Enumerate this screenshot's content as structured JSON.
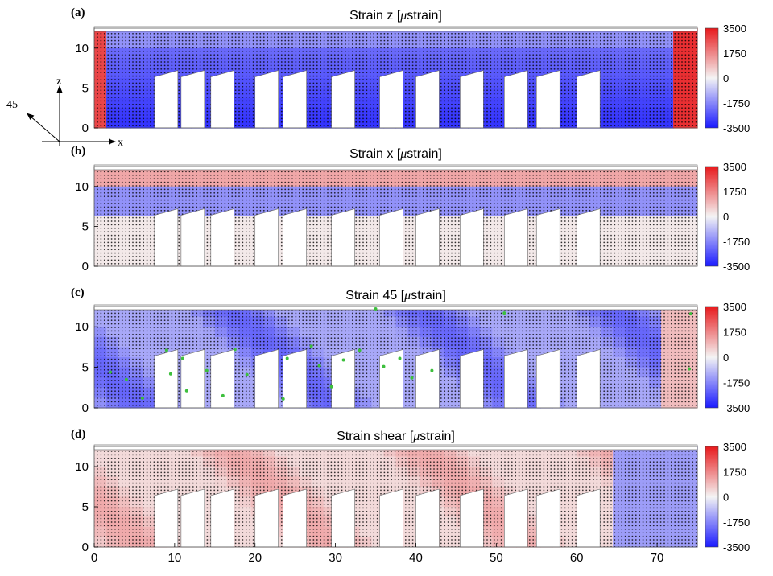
{
  "chart_data": [
    {
      "type": "heatmap",
      "panel_label": "(a)",
      "title_prefix": "Strain z [",
      "title_mu": "μ",
      "title_suffix": "strain]",
      "x_range": [
        0,
        75
      ],
      "y_range": [
        0,
        12.5
      ],
      "y_ticks": [
        "0",
        "5",
        "10"
      ],
      "colorbar_ticks": [
        "3500",
        "1750",
        "0",
        "-1750",
        "-3500"
      ],
      "clim": [
        -3500,
        3500
      ]
    },
    {
      "type": "heatmap",
      "panel_label": "(b)",
      "title_prefix": "Strain x [",
      "title_mu": "μ",
      "title_suffix": "strain]",
      "x_range": [
        0,
        75
      ],
      "y_range": [
        0,
        12.5
      ],
      "y_ticks": [
        "0",
        "5",
        "10"
      ],
      "colorbar_ticks": [
        "3500",
        "1750",
        "0",
        "-1750",
        "-3500"
      ],
      "clim": [
        -3500,
        3500
      ]
    },
    {
      "type": "heatmap",
      "panel_label": "(c)",
      "title_prefix": "Strain 45 [",
      "title_mu": "μ",
      "title_suffix": "strain]",
      "x_range": [
        0,
        75
      ],
      "y_range": [
        0,
        12.5
      ],
      "y_ticks": [
        "0",
        "5",
        "10"
      ],
      "colorbar_ticks": [
        "3500",
        "1750",
        "0",
        "-1750",
        "-3500"
      ],
      "clim": [
        -3500,
        3500
      ]
    },
    {
      "type": "heatmap",
      "panel_label": "(d)",
      "title_prefix": "Strain shear [",
      "title_mu": "μ",
      "title_suffix": "strain]",
      "x_range": [
        0,
        75
      ],
      "y_range": [
        0,
        12.5
      ],
      "y_ticks": [
        "0",
        "5",
        "10"
      ],
      "x_ticks": [
        "0",
        "10",
        "20",
        "30",
        "40",
        "50",
        "60",
        "70"
      ],
      "colorbar_ticks": [
        "3500",
        "1750",
        "0",
        "-1750",
        "-3500"
      ],
      "clim": [
        -3500,
        3500
      ]
    }
  ],
  "axis_diagram": {
    "z_label": "z",
    "x_label": "x",
    "diag_label": "45"
  },
  "colors": {
    "positive": "#e8191c",
    "neutral": "#f4f4f4",
    "negative": "#1a1aff",
    "marker": "#3dbf3d"
  }
}
